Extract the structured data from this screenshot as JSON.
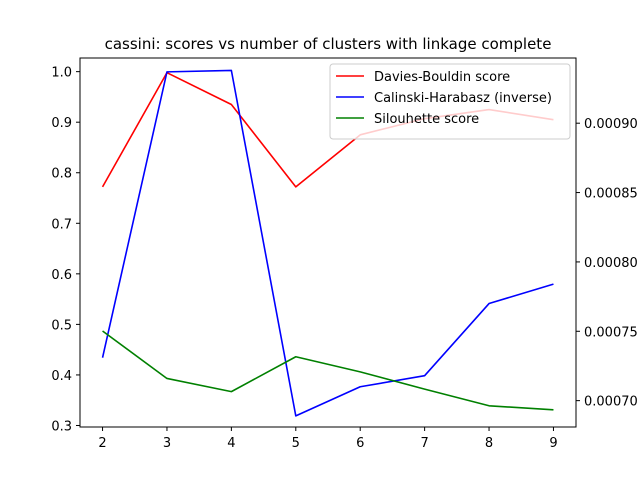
{
  "chart_data": {
    "type": "line",
    "title": "cassini: scores vs number of clusters with linkage complete",
    "x": [
      2,
      3,
      4,
      5,
      6,
      7,
      8,
      9
    ],
    "x_ticks": [
      "2",
      "3",
      "4",
      "5",
      "6",
      "7",
      "8",
      "9"
    ],
    "xlim": [
      1.65,
      9.35
    ],
    "left_axis": {
      "ylim": [
        0.297,
        1.027
      ],
      "ticks": [
        "0.3",
        "0.4",
        "0.5",
        "0.6",
        "0.7",
        "0.8",
        "0.9",
        "1.0"
      ]
    },
    "right_axis": {
      "ylim": [
        0.000681,
        0.000947
      ],
      "ticks": [
        "0.00070",
        "0.00075",
        "0.00080",
        "0.00085",
        "0.00090"
      ]
    },
    "series": [
      {
        "name": "Davies-Bouldin score",
        "axis": "left",
        "color": "#ff0000",
        "values": [
          0.772,
          0.998,
          0.935,
          0.772,
          0.875,
          0.907,
          0.925,
          0.905
        ]
      },
      {
        "name": "Calinski-Harabasz (inverse)",
        "axis": "right",
        "color": "#0000ff",
        "values": [
          0.000731,
          0.000937,
          0.000938,
          0.000689,
          0.00071,
          0.000718,
          0.00077,
          0.000784
        ]
      },
      {
        "name": "Silouhette score",
        "axis": "left",
        "color": "#008000",
        "values": [
          0.487,
          0.393,
          0.367,
          0.436,
          0.406,
          0.372,
          0.339,
          0.331
        ]
      }
    ],
    "legend_position": "top-right",
    "grid": false
  }
}
